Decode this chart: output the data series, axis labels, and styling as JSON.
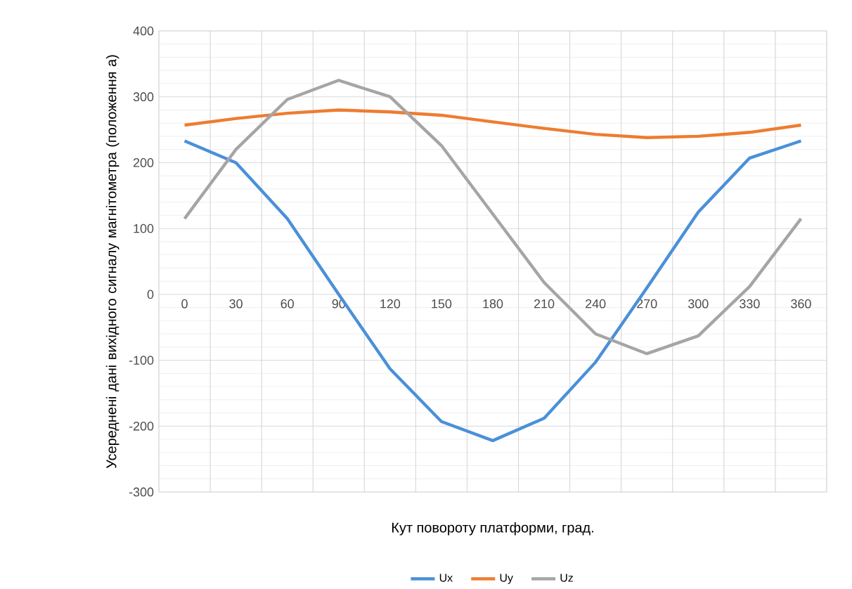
{
  "chart_data": {
    "type": "line",
    "xlabel": "Кут повороту платформи, град.",
    "ylabel": "Усереднені дані вихідного сигналу магнітометра (положення а)",
    "categories": [
      "0",
      "30",
      "60",
      "90",
      "120",
      "150",
      "180",
      "210",
      "240",
      "270",
      "300",
      "330",
      "360"
    ],
    "series": [
      {
        "name": "Ux",
        "color": "#4a90d9",
        "values": [
          233,
          200,
          115,
          0,
          -113,
          -193,
          -222,
          -188,
          -103,
          10,
          125,
          207,
          233
        ]
      },
      {
        "name": "Uy",
        "color": "#ed7d31",
        "values": [
          257,
          267,
          275,
          280,
          277,
          272,
          262,
          252,
          243,
          238,
          240,
          246,
          257
        ]
      },
      {
        "name": "Uz",
        "color": "#a5a5a5",
        "values": [
          115,
          220,
          296,
          325,
          300,
          226,
          122,
          18,
          -60,
          -90,
          -63,
          12,
          115
        ]
      }
    ],
    "ylim": [
      -300,
      400
    ],
    "yticks": [
      -300,
      -200,
      -100,
      0,
      100,
      200,
      300,
      400
    ],
    "grid": true,
    "legend": "bottom",
    "marker": "none",
    "line_style": "solid"
  }
}
